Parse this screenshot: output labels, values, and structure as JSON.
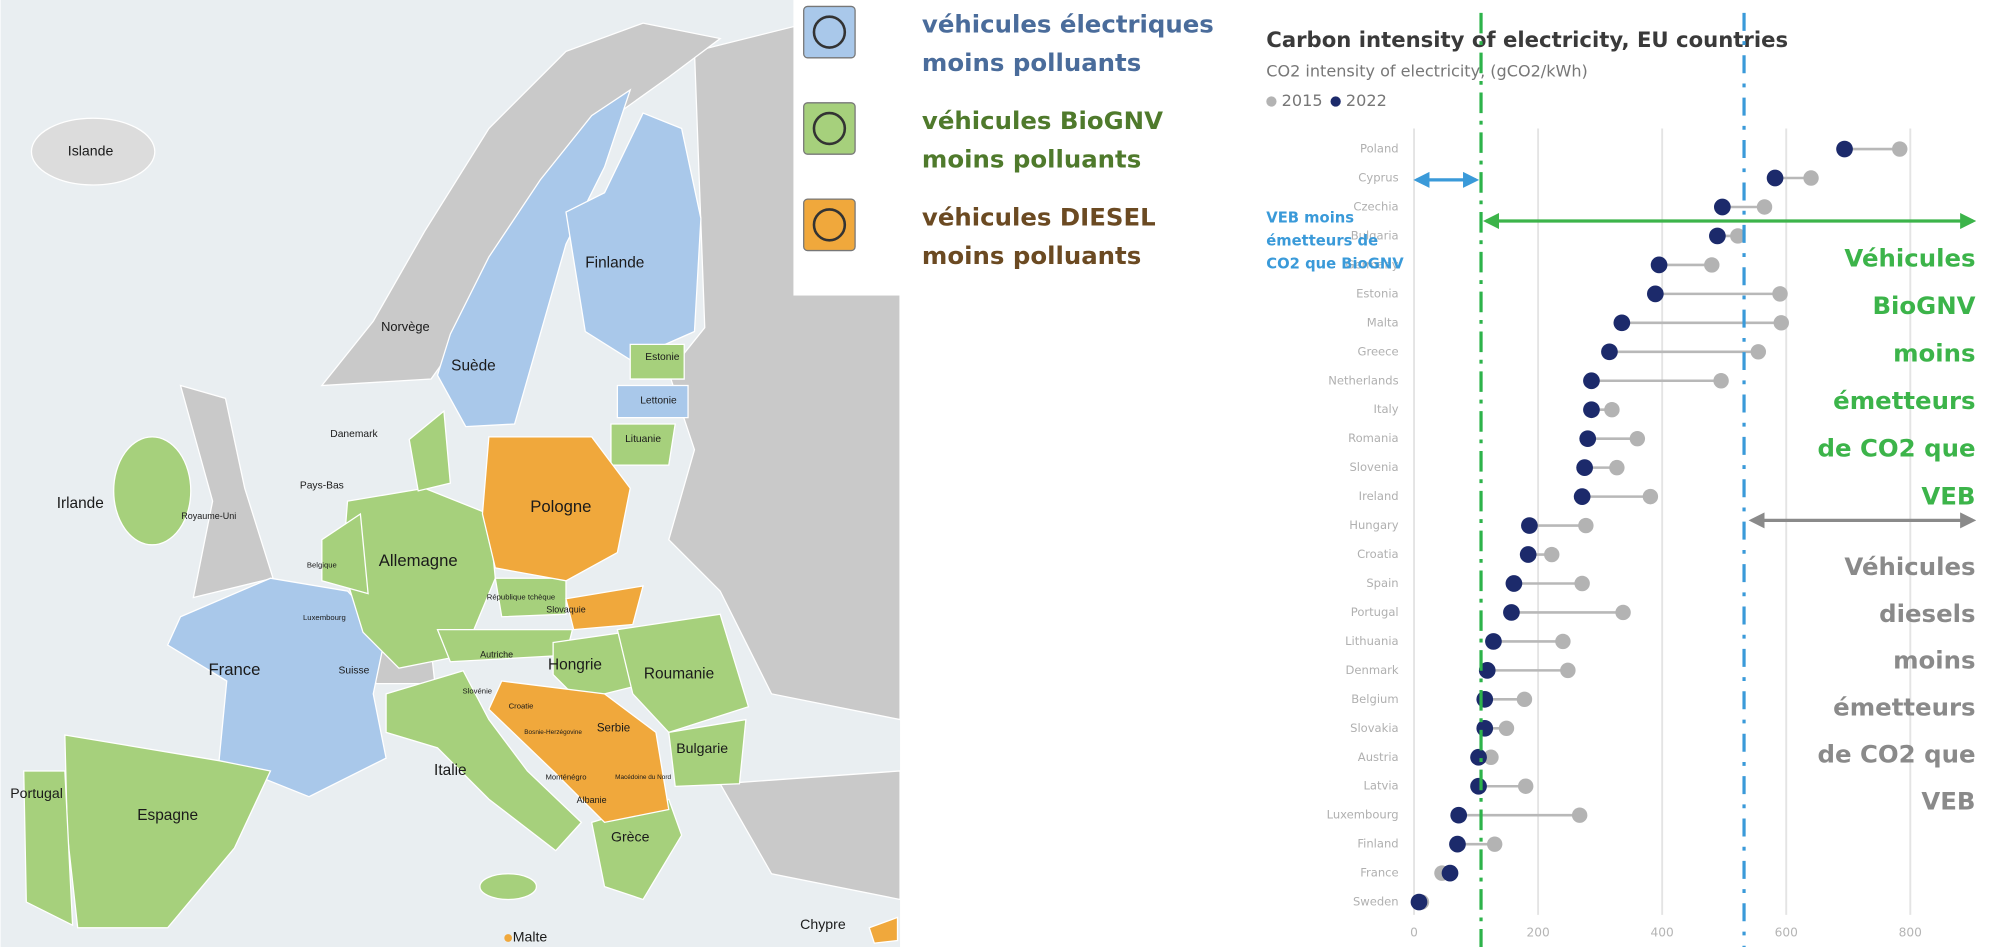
{
  "legend": [
    {
      "lines": [
        "véhicules électriques",
        "moins polluants"
      ],
      "color": "#4a6c9b",
      "fill": "#a9c8ea"
    },
    {
      "lines": [
        "véhicules BioGNV",
        "moins polluants"
      ],
      "color": "#4f7a2c",
      "fill": "#a6d07c"
    },
    {
      "lines": [
        "véhicules DIESEL",
        "moins polluants"
      ],
      "color": "#6b4a22",
      "fill": "#f0a83c"
    }
  ],
  "map": {
    "labels": [
      "Islande",
      "Finlande",
      "Norvège",
      "Suède",
      "Estonie",
      "Lettonie",
      "Lituanie",
      "Danemark",
      "Irlande",
      "Royaume-Uni",
      "Pays-Bas",
      "Belgique",
      "Allemagne",
      "Pologne",
      "République tchèque",
      "Slovaquie",
      "Luxembourg",
      "France",
      "Suisse",
      "Autriche",
      "Hongrie",
      "Roumanie",
      "Slovénie",
      "Croatie",
      "Bosnie-Herzégovine",
      "Serbie",
      "Bulgarie",
      "Italie",
      "Monténégro",
      "Macédoine du Nord",
      "Albanie",
      "Grèce",
      "Portugal",
      "Espagne",
      "Chypre",
      "Malte"
    ]
  },
  "chart_data": {
    "type": "dumbbell",
    "title": "Carbon intensity of electricity, EU countries",
    "subtitle": "CO2 intensity of electricity, (gCO2/kWh)",
    "categories": [
      "Poland",
      "Cyprus",
      "Czechia",
      "Bulgaria",
      "Germany",
      "Estonia",
      "Malta",
      "Greece",
      "Netherlands",
      "Italy",
      "Romania",
      "Slovenia",
      "Ireland",
      "Hungary",
      "Croatia",
      "Spain",
      "Portugal",
      "Lithuania",
      "Denmark",
      "Belgium",
      "Slovakia",
      "Austria",
      "Latvia",
      "Luxembourg",
      "Finland",
      "France",
      "Sweden"
    ],
    "series": [
      {
        "name": "2015",
        "color": "#b3b3b3",
        "values": [
          783,
          640,
          565,
          522,
          480,
          590,
          592,
          555,
          495,
          319,
          360,
          327,
          381,
          277,
          222,
          271,
          337,
          240,
          248,
          178,
          149,
          124,
          180,
          267,
          130,
          45,
          12
        ]
      },
      {
        "name": "2022",
        "color": "#1c2a6b",
        "values": [
          694,
          582,
          497,
          489,
          395,
          389,
          335,
          315,
          286,
          286,
          280,
          275,
          271,
          186,
          184,
          161,
          157,
          128,
          118,
          114,
          114,
          104,
          104,
          72,
          70,
          58,
          8
        ]
      }
    ],
    "xlim": [
      0,
      870
    ],
    "xticks": [
      0,
      200,
      400,
      600,
      800
    ],
    "grid": true,
    "reference_lines": [
      {
        "value": 108,
        "color": "#2db34a"
      },
      {
        "value": 532,
        "color": "#3a9ad9"
      }
    ],
    "annotations": [
      {
        "lines": [
          "VEB moins",
          "émetteurs de",
          "CO2 que BioGNV"
        ],
        "color": "#3a9ad9"
      },
      {
        "lines": [
          "Véhicules",
          "BioGNV",
          "moins",
          "émetteurs",
          "de CO2 que",
          "VEB"
        ],
        "color": "#3cb44a"
      },
      {
        "lines": [
          "Véhicules",
          "diesels",
          "moins",
          "émetteurs",
          "de CO2 que",
          "VEB"
        ],
        "color": "#8a8a8a"
      }
    ]
  }
}
